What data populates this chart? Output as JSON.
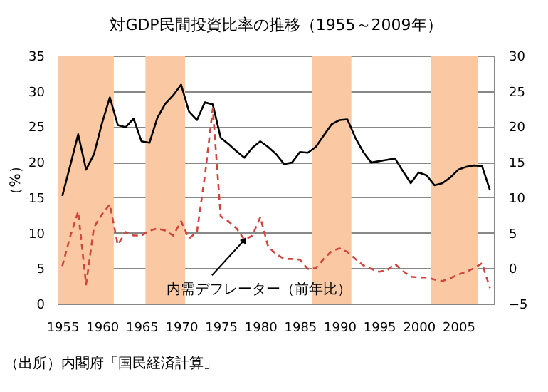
{
  "chart_data": {
    "type": "line",
    "title": "対GDP民間投資比率の推移（1955～2009年）",
    "ylabel": "（%）",
    "x": [
      1955,
      1956,
      1957,
      1958,
      1959,
      1960,
      1961,
      1962,
      1963,
      1964,
      1965,
      1966,
      1967,
      1968,
      1969,
      1970,
      1971,
      1972,
      1973,
      1974,
      1975,
      1976,
      1977,
      1978,
      1979,
      1980,
      1981,
      1982,
      1983,
      1984,
      1985,
      1986,
      1987,
      1988,
      1989,
      1990,
      1991,
      1992,
      1993,
      1994,
      1995,
      1996,
      1997,
      1998,
      1999,
      2000,
      2001,
      2002,
      2003,
      2004,
      2005,
      2006,
      2007,
      2008,
      2009
    ],
    "series": [
      {
        "type": "line",
        "color": "#000000",
        "line_style": "solid",
        "values": [
          15.2,
          19.5,
          23.9,
          18.9,
          21.1,
          25.4,
          29.1,
          25.2,
          24.9,
          26.1,
          22.9,
          22.7,
          26.2,
          28.2,
          29.4,
          30.9,
          27.1,
          25.9,
          28.4,
          28.1,
          23.4,
          22.5,
          21.5,
          20.6,
          22.0,
          22.9,
          22.1,
          21.1,
          19.7,
          19.9,
          21.4,
          21.3,
          22.1,
          23.7,
          25.3,
          25.9,
          26.0,
          23.4,
          21.4,
          19.9,
          20.1,
          20.3,
          20.5,
          18.7,
          17.0,
          18.5,
          18.1,
          16.7,
          17.0,
          17.8,
          18.9,
          19.3,
          19.5,
          19.4,
          16.0
        ]
      },
      {
        "type": "line",
        "color": "#d0443c",
        "line_style": "dashed",
        "axis": "y2",
        "values": [
          0.3,
          4.5,
          8.0,
          -2.3,
          5.8,
          7.6,
          9.0,
          3.3,
          5.1,
          4.6,
          4.6,
          5.3,
          5.6,
          5.3,
          4.6,
          6.6,
          4.2,
          5.1,
          13.0,
          22.5,
          7.3,
          6.6,
          5.6,
          4.0,
          4.6,
          7.2,
          3.0,
          2.0,
          1.3,
          1.3,
          1.2,
          -0.1,
          0.0,
          1.3,
          2.4,
          2.8,
          2.3,
          1.3,
          0.4,
          -0.1,
          -0.5,
          -0.3,
          0.6,
          -0.4,
          -1.2,
          -1.3,
          -1.3,
          -1.6,
          -1.8,
          -1.4,
          -0.9,
          -0.5,
          0.0,
          0.7,
          -2.8
        ]
      }
    ],
    "xlim": [
      1954.5,
      2009.5
    ],
    "xticks": [
      1955,
      1960,
      1965,
      1970,
      1975,
      1980,
      1985,
      1990,
      1995,
      2000,
      2005
    ],
    "ylim": [
      0,
      35
    ],
    "yticks": [
      0,
      5,
      10,
      15,
      20,
      25,
      30,
      35
    ],
    "y2lim": [
      -5,
      30
    ],
    "y2ticks": [
      -5,
      0,
      5,
      10,
      15,
      20,
      25,
      30
    ],
    "grid": "y",
    "bands": [
      {
        "axis": "x",
        "from": 1954.5,
        "to": 1961.5,
        "color": "#fac9a3"
      },
      {
        "axis": "x",
        "from": 1965.5,
        "to": 1970.5,
        "color": "#fac9a3"
      },
      {
        "axis": "x",
        "from": 1986.5,
        "to": 1991.5,
        "color": "#fac9a3"
      },
      {
        "axis": "x",
        "from": 2001.5,
        "to": 2007.5,
        "color": "#fac9a3"
      }
    ],
    "annotations": [
      {
        "text": "内需デフレーター（前年比）",
        "x": 1978,
        "y": 9.0
      },
      "（出所）内閣府「国民経済計算」"
    ]
  }
}
